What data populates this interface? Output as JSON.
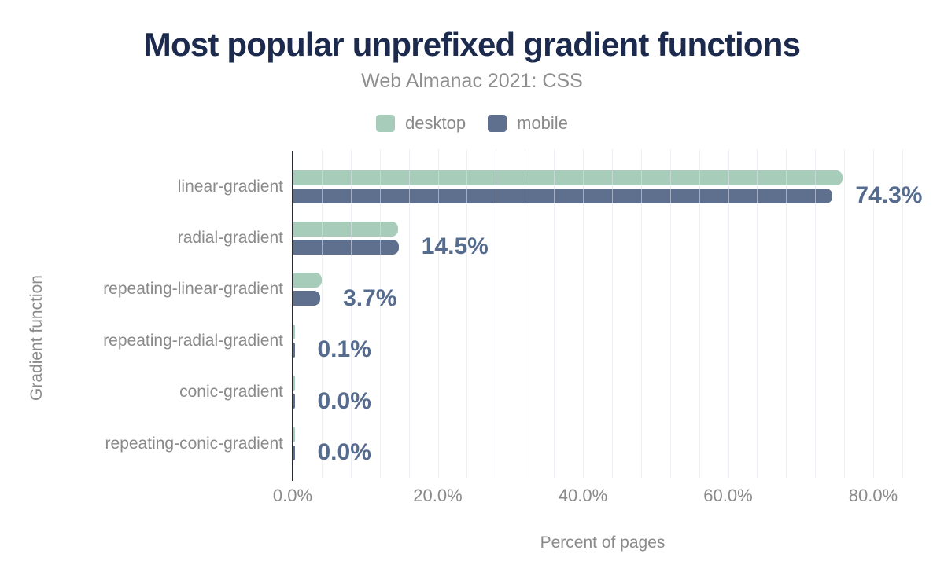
{
  "chart": {
    "palette": {
      "desktop": "#a8ccba",
      "mobile": "#5f708f",
      "title_text": "#1c2b4d",
      "subtitle_text": "#8e8e8e",
      "axis_text": "#8a8a8a",
      "value_label_text": "#566c8f",
      "axis_line": "#272b33",
      "gridline": "#e9ebf0",
      "background": "#ffffff"
    }
  },
  "chart_data": {
    "type": "bar",
    "orientation": "horizontal",
    "title": "Most popular unprefixed gradient functions",
    "subtitle": "Web Almanac 2021: CSS",
    "xlabel": "Percent of pages",
    "ylabel": "Gradient function",
    "categories": [
      "linear-gradient",
      "radial-gradient",
      "repeating-linear-gradient",
      "repeating-radial-gradient",
      "conic-gradient",
      "repeating-conic-gradient"
    ],
    "series": [
      {
        "name": "desktop",
        "color": "#a8ccba",
        "values": [
          75.7,
          14.4,
          3.9,
          0.1,
          0.0,
          0.0
        ]
      },
      {
        "name": "mobile",
        "color": "#5f708f",
        "values": [
          74.3,
          14.5,
          3.7,
          0.1,
          0.0,
          0.0
        ]
      }
    ],
    "value_labels": [
      "74.3%",
      "14.5%",
      "3.7%",
      "0.1%",
      "0.0%",
      "0.0%"
    ],
    "value_labels_follow_series": "mobile",
    "x_ticks": [
      {
        "value": 0,
        "label": "0.0%"
      },
      {
        "value": 20,
        "label": "20.0%"
      },
      {
        "value": 40,
        "label": "40.0%"
      },
      {
        "value": 60,
        "label": "60.0%"
      },
      {
        "value": 80,
        "label": "80.0%"
      }
    ],
    "xlim": [
      0,
      84
    ],
    "grid": {
      "axis": "x",
      "step_pct": 4,
      "on": true
    },
    "legend_position": "top"
  }
}
